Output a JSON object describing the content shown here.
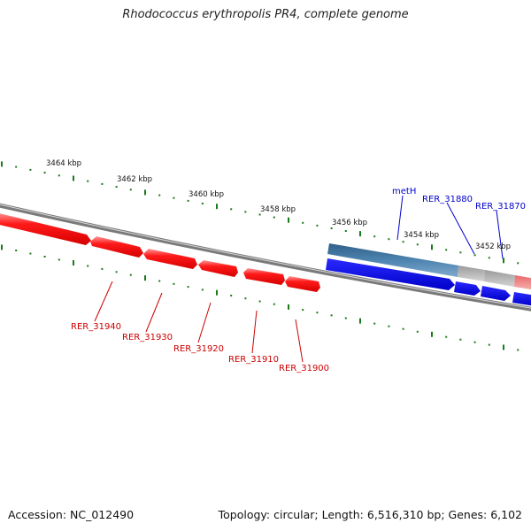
{
  "title": "Rhodococcus erythropolis PR4, complete genome",
  "footer": {
    "accession": "Accession: NC_012490",
    "summary": "Topology: circular; Length: 6,516,310 bp; Genes: 6,102"
  },
  "colors": {
    "backbone": "#7a7a7a",
    "tick": "#1a7a1a",
    "reverse_gene": "#ff1a1a",
    "forward_gene": "#1010ee",
    "forward_label": "#0000cc",
    "reverse_label": "#cc0000",
    "meth_gene": "#4d84b0",
    "grey_gene": "#bdbdbd",
    "pink_gene": "#f08080"
  },
  "scale": {
    "unit": "kbp",
    "labels": [
      "3464 kbp",
      "3462 kbp",
      "3460 kbp",
      "3458 kbp",
      "3456 kbp",
      "3454 kbp",
      "3452 kbp"
    ]
  },
  "genes_forward_labels": [
    "metH",
    "RER_31880",
    "RER_31870"
  ],
  "genes_reverse_labels": [
    "RER_31940",
    "RER_31930",
    "RER_31920",
    "RER_31910",
    "RER_31900"
  ]
}
